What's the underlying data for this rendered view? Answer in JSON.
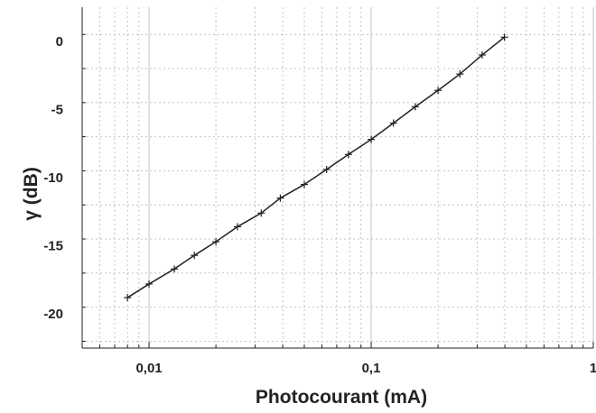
{
  "chart_data": {
    "type": "line",
    "title": "",
    "xlabel": "Photocourant (mA)",
    "ylabel": "γ (dB)",
    "x_scale": "log",
    "xlim": [
      0.005,
      1
    ],
    "ylim": [
      -22.5,
      2.5
    ],
    "x_ticks": [
      {
        "value": 0.01,
        "label": "0,01"
      },
      {
        "value": 0.1,
        "label": "0,1"
      },
      {
        "value": 1,
        "label": "1"
      }
    ],
    "y_ticks": [
      {
        "value": 0,
        "label": "0"
      },
      {
        "value": -5,
        "label": "-5"
      },
      {
        "value": -10,
        "label": "-10"
      },
      {
        "value": -15,
        "label": "-15"
      },
      {
        "value": -20,
        "label": "-20"
      }
    ],
    "grid": true,
    "marker": "plus",
    "color": "#222222",
    "series": [
      {
        "x": [
          0.008,
          0.01,
          0.013,
          0.016,
          0.02,
          0.025,
          0.032,
          0.039,
          0.05,
          0.063,
          0.079,
          0.1,
          0.126,
          0.158,
          0.2,
          0.251,
          0.316,
          0.398
        ],
        "y": [
          -18.8,
          -17.8,
          -16.7,
          -15.7,
          -14.7,
          -13.6,
          -12.6,
          -11.5,
          -10.5,
          -9.4,
          -8.3,
          -7.2,
          -6.0,
          -4.8,
          -3.6,
          -2.4,
          -1.0,
          0.3
        ]
      }
    ]
  }
}
